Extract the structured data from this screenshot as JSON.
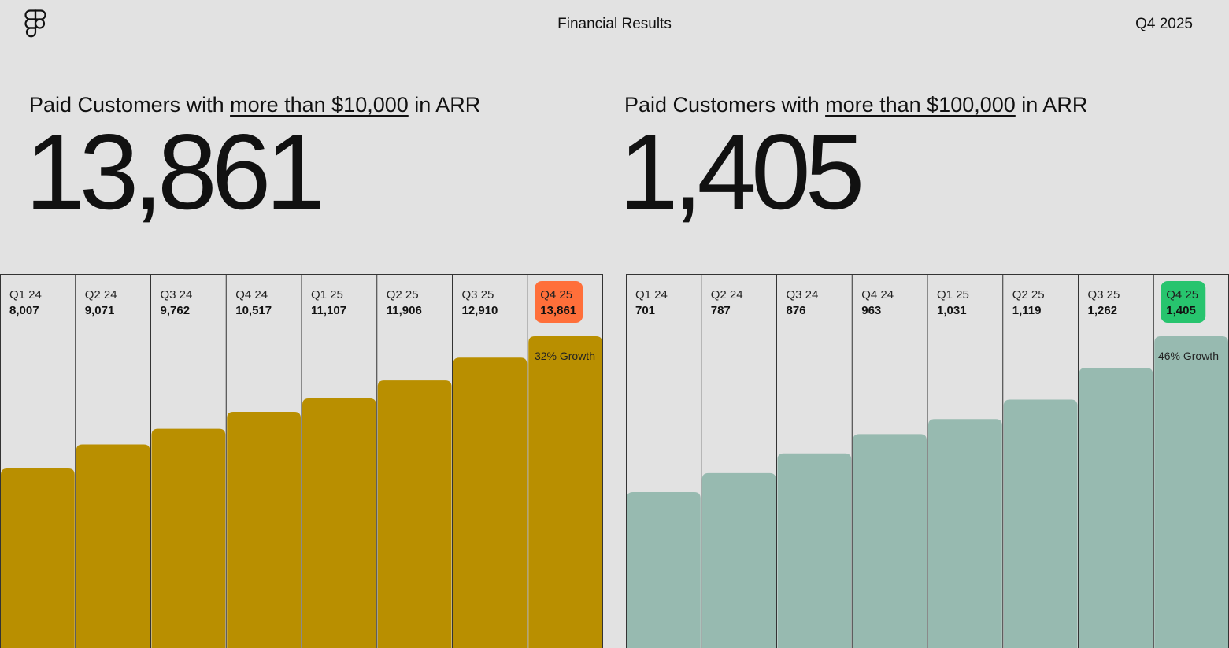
{
  "header": {
    "logo_icon": "figma-logo",
    "title": "Financial Results",
    "period": "Q4 2025"
  },
  "panels": [
    {
      "label_prefix": "Paid Customers with ",
      "label_emphasis": "more than $10,000",
      "label_suffix": " in ARR",
      "headline_value": "13,861"
    },
    {
      "label_prefix": "Paid Customers with ",
      "label_emphasis": "more than $100,000",
      "label_suffix": " in ARR",
      "headline_value": "1,405"
    }
  ],
  "chart_data": [
    {
      "type": "bar",
      "categories": [
        "Q1 24",
        "Q2 24",
        "Q3 24",
        "Q4 24",
        "Q1 25",
        "Q2 25",
        "Q3 25",
        "Q4 25"
      ],
      "values": [
        8007,
        9071,
        9762,
        10517,
        11107,
        11906,
        12910,
        13861
      ],
      "value_labels": [
        "8,007",
        "9,071",
        "9,762",
        "10,517",
        "11,107",
        "11,906",
        "12,910",
        "13,861"
      ],
      "annotation": "32% Growth",
      "bar_color": "#b98f00",
      "highlight_color": "#ff6f3a",
      "highlight_text_color": "#111111",
      "grid": true
    },
    {
      "type": "bar",
      "categories": [
        "Q1 24",
        "Q2 24",
        "Q3 24",
        "Q4 24",
        "Q1 25",
        "Q2 25",
        "Q3 25",
        "Q4 25"
      ],
      "values": [
        701,
        787,
        876,
        963,
        1031,
        1119,
        1262,
        1405
      ],
      "value_labels": [
        "701",
        "787",
        "876",
        "963",
        "1,031",
        "1,119",
        "1,262",
        "1,405"
      ],
      "annotation": "46% Growth",
      "bar_color": "#97bab0",
      "highlight_color": "#27c46e",
      "highlight_text_color": "#111111",
      "grid": true
    }
  ]
}
